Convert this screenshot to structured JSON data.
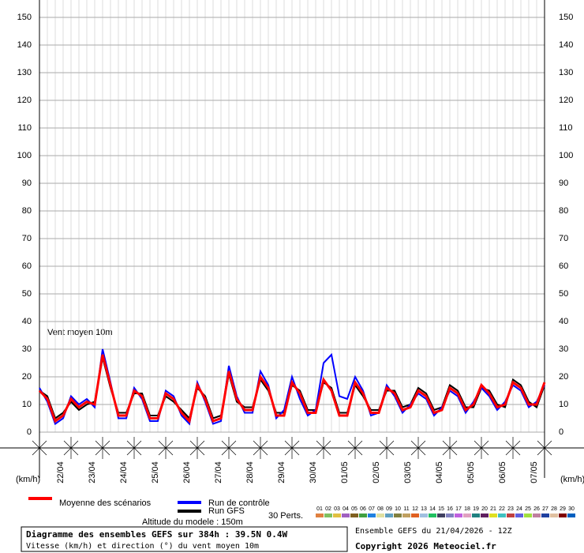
{
  "chart_data": {
    "type": "line",
    "annotation": "Vent moyen 10m",
    "y_unit_label": "(km/h)",
    "categories": [
      null,
      null,
      "22/04",
      null,
      null,
      null,
      "23/04",
      null,
      null,
      null,
      "24/04",
      null,
      null,
      null,
      "25/04",
      null,
      null,
      null,
      "26/04",
      null,
      null,
      null,
      "27/04",
      null,
      null,
      null,
      "28/04",
      null,
      null,
      null,
      "29/04",
      null,
      null,
      null,
      "30/04",
      null,
      null,
      null,
      "01/05",
      null,
      null,
      null,
      "02/05",
      null,
      null,
      null,
      "03/05",
      null,
      null,
      null,
      "04/05",
      null,
      null,
      null,
      "05/05",
      null,
      null,
      null,
      "06/05",
      null,
      null,
      null,
      "07/05",
      null,
      null
    ],
    "ylim": [
      0,
      150
    ],
    "yticks": [
      0,
      10,
      20,
      30,
      40,
      50,
      60,
      70,
      80,
      90,
      100,
      110,
      120,
      130,
      140,
      150
    ],
    "grid": true,
    "series": [
      {
        "name": "Run GFS",
        "color": "#000000",
        "values": [
          15,
          13,
          5,
          7,
          11,
          8,
          10,
          11,
          27,
          16,
          7,
          7,
          14,
          14,
          6,
          6,
          13,
          11,
          8,
          5,
          16,
          13,
          5,
          6,
          21,
          11,
          9,
          9,
          19,
          15,
          7,
          7,
          17,
          15,
          8,
          8,
          18,
          16,
          7,
          7,
          17,
          13,
          8,
          8,
          15,
          15,
          9,
          10,
          16,
          14,
          8,
          9,
          17,
          15,
          9,
          9,
          16,
          15,
          10,
          9,
          19,
          17,
          11,
          9,
          17
        ]
      },
      {
        "name": "Run de contrôle",
        "color": "#0000ff",
        "values": [
          16,
          11,
          3,
          5,
          13,
          10,
          12,
          9,
          30,
          18,
          5,
          5,
          16,
          12,
          4,
          4,
          15,
          13,
          6,
          3,
          18,
          11,
          3,
          4,
          24,
          13,
          7,
          7,
          22,
          17,
          5,
          8,
          20,
          12,
          6,
          8,
          25,
          28,
          13,
          12,
          20,
          15,
          6,
          7,
          17,
          13,
          7,
          10,
          14,
          12,
          6,
          9,
          15,
          13,
          7,
          11,
          16,
          13,
          8,
          11,
          17,
          15,
          9,
          11,
          17
        ]
      },
      {
        "name": "Moyenne des scénarios",
        "color": "#ff0000",
        "values": [
          15,
          12,
          4,
          6,
          12,
          9,
          11,
          10,
          28,
          17,
          6,
          6,
          15,
          13,
          5,
          5,
          14,
          12,
          7,
          4,
          17,
          12,
          4,
          5,
          22,
          12,
          8,
          8,
          20,
          16,
          6,
          6,
          18,
          14,
          7,
          7,
          19,
          15,
          6,
          6,
          18,
          14,
          7,
          7,
          16,
          14,
          8,
          9,
          15,
          13,
          7,
          8,
          16,
          14,
          8,
          10,
          17,
          14,
          9,
          10,
          18,
          16,
          10,
          10,
          18
        ]
      }
    ],
    "perturbations": {
      "label": "30 Perts.",
      "items": [
        {
          "name": "01",
          "color": "#e08040"
        },
        {
          "name": "02",
          "color": "#80c060"
        },
        {
          "name": "03",
          "color": "#e0c040"
        },
        {
          "name": "04",
          "color": "#a060c0"
        },
        {
          "name": "05",
          "color": "#806020"
        },
        {
          "name": "06",
          "color": "#40a040"
        },
        {
          "name": "07",
          "color": "#2080e0"
        },
        {
          "name": "08",
          "color": "#e0e0a0"
        },
        {
          "name": "09",
          "color": "#60a0c0"
        },
        {
          "name": "10",
          "color": "#808040"
        },
        {
          "name": "11",
          "color": "#c0a060"
        },
        {
          "name": "12",
          "color": "#e06020"
        },
        {
          "name": "13",
          "color": "#a0c0e0"
        },
        {
          "name": "14",
          "color": "#20c060"
        },
        {
          "name": "15",
          "color": "#404060"
        },
        {
          "name": "16",
          "color": "#8080c0"
        },
        {
          "name": "17",
          "color": "#c060e0"
        },
        {
          "name": "18",
          "color": "#e0a0c0"
        },
        {
          "name": "19",
          "color": "#208080"
        },
        {
          "name": "20",
          "color": "#602060"
        },
        {
          "name": "21",
          "color": "#e0e020"
        },
        {
          "name": "22",
          "color": "#40c0c0"
        },
        {
          "name": "23",
          "color": "#c04040"
        },
        {
          "name": "24",
          "color": "#6060e0"
        },
        {
          "name": "25",
          "color": "#a0e040"
        },
        {
          "name": "26",
          "color": "#c080a0"
        },
        {
          "name": "27",
          "color": "#2040a0"
        },
        {
          "name": "28",
          "color": "#e0c0a0"
        },
        {
          "name": "29",
          "color": "#800000"
        },
        {
          "name": "30",
          "color": "#0060c0"
        }
      ]
    },
    "altitude": "Altitude du modele : 150m",
    "title": "Diagramme des ensembles GEFS sur 384h : 39.5N 0.4W",
    "subtitle": "Vitesse (km/h) et direction (°) du vent moyen 10m",
    "run_info": "Ensemble GEFS du 21/04/2026 - 12Z",
    "copyright": "Copyright 2026 Meteociel.fr"
  }
}
